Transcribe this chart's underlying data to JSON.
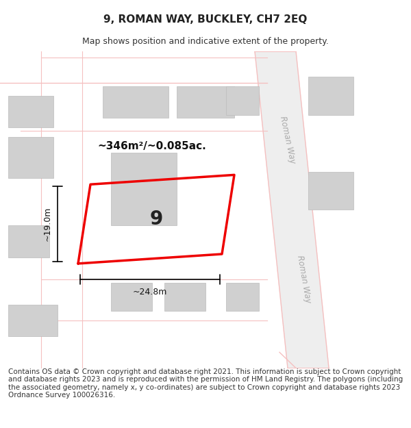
{
  "title": "9, ROMAN WAY, BUCKLEY, CH7 2EQ",
  "subtitle": "Map shows position and indicative extent of the property.",
  "footer": "Contains OS data © Crown copyright and database right 2021. This information is subject to Crown copyright and database rights 2023 and is reproduced with the permission of HM Land Registry. The polygons (including the associated geometry, namely x, y co-ordinates) are subject to Crown copyright and database rights 2023 Ordnance Survey 100026316.",
  "map_bg": "#f7f7f7",
  "plot_bg": "#ffffff",
  "road_fill": "#e8e8e8",
  "road_pink": "#f5c0c0",
  "building_fill": "#d8d8d8",
  "building_stroke": "#cccccc",
  "red_plot_color": "#ee0000",
  "area_text": "~346m²/~0.085ac.",
  "width_text": "~24.8m",
  "height_text": "~19.0m",
  "plot_number": "9",
  "roman_way_label": "Roman Way",
  "title_fontsize": 11,
  "subtitle_fontsize": 9,
  "footer_fontsize": 7.5
}
